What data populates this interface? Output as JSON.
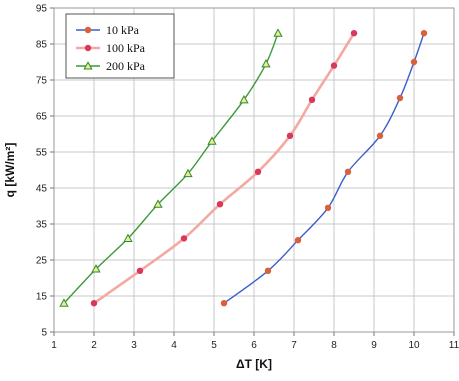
{
  "chart_data": {
    "type": "line",
    "title": "",
    "xlabel": "ΔT [K]",
    "ylabel": "q [kW/m²]",
    "xlim": [
      1,
      11
    ],
    "ylim": [
      5,
      95
    ],
    "x_ticks": [
      "1",
      "2",
      "3",
      "4",
      "5",
      "6",
      "7",
      "8",
      "9",
      "10",
      "11"
    ],
    "y_ticks": [
      "5",
      "15",
      "25",
      "35",
      "45",
      "55",
      "65",
      "75",
      "85",
      "95"
    ],
    "grid": true,
    "legend_position": "top-left",
    "series": [
      {
        "name": "10 kPa",
        "color": "#3a5fcd",
        "marker": "circle",
        "marker_color": "#d9603b",
        "x": [
          5.25,
          6.35,
          7.1,
          7.85,
          8.35,
          9.15,
          9.65,
          10.0,
          10.25
        ],
        "y": [
          13,
          22,
          30.5,
          39.5,
          49.5,
          59.5,
          70,
          80,
          88
        ]
      },
      {
        "name": "100 kPa",
        "color": "#f4a9a0",
        "marker": "circle",
        "marker_color": "#d9385a",
        "x": [
          2.0,
          3.15,
          4.25,
          5.15,
          6.1,
          6.9,
          7.45,
          8.0,
          8.5
        ],
        "y": [
          13,
          22,
          31,
          40.5,
          49.5,
          59.5,
          69.5,
          79,
          88
        ]
      },
      {
        "name": "200 kPa",
        "color": "#3a9a3a",
        "marker": "triangle",
        "marker_color": "#ecec90",
        "x": [
          1.25,
          2.05,
          2.85,
          3.6,
          4.35,
          4.95,
          5.75,
          6.3,
          6.6
        ],
        "y": [
          13,
          22.5,
          31,
          40.5,
          49,
          58,
          69.5,
          79.5,
          88
        ]
      }
    ]
  }
}
